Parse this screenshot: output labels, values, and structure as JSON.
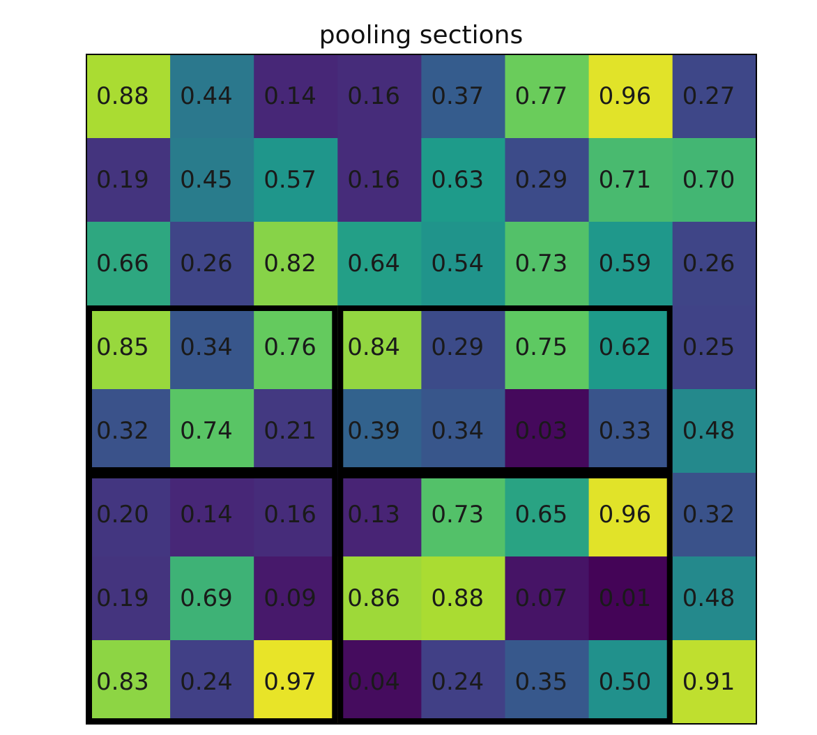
{
  "chart_data": {
    "type": "heatmap",
    "title": "pooling sections",
    "xlabel": "",
    "ylabel": "",
    "colormap": "viridis",
    "value_range": [
      0,
      1
    ],
    "rows": 8,
    "cols": 8,
    "values": [
      [
        0.88,
        0.44,
        0.14,
        0.16,
        0.37,
        0.77,
        0.96,
        0.27
      ],
      [
        0.19,
        0.45,
        0.57,
        0.16,
        0.63,
        0.29,
        0.71,
        0.7
      ],
      [
        0.66,
        0.26,
        0.82,
        0.64,
        0.54,
        0.73,
        0.59,
        0.26
      ],
      [
        0.85,
        0.34,
        0.76,
        0.84,
        0.29,
        0.75,
        0.62,
        0.25
      ],
      [
        0.32,
        0.74,
        0.21,
        0.39,
        0.34,
        0.03,
        0.33,
        0.48
      ],
      [
        0.2,
        0.14,
        0.16,
        0.13,
        0.73,
        0.65,
        0.96,
        0.32
      ],
      [
        0.19,
        0.69,
        0.09,
        0.86,
        0.88,
        0.07,
        0.01,
        0.48
      ],
      [
        0.83,
        0.24,
        0.97,
        0.04,
        0.24,
        0.35,
        0.5,
        0.91
      ]
    ],
    "labels": [
      [
        "0.88",
        "0.44",
        "0.14",
        "0.16",
        "0.37",
        "0.77",
        "0.96",
        "0.27"
      ],
      [
        "0.19",
        "0.45",
        "0.57",
        "0.16",
        "0.63",
        "0.29",
        "0.71",
        "0.70"
      ],
      [
        "0.66",
        "0.26",
        "0.82",
        "0.64",
        "0.54",
        "0.73",
        "0.59",
        "0.26"
      ],
      [
        "0.85",
        "0.34",
        "0.76",
        "0.84",
        "0.29",
        "0.75",
        "0.62",
        "0.25"
      ],
      [
        "0.32",
        "0.74",
        "0.21",
        "0.39",
        "0.34",
        "0.03",
        "0.33",
        "0.48"
      ],
      [
        "0.20",
        "0.14",
        "0.16",
        "0.13",
        "0.73",
        "0.65",
        "0.96",
        "0.32"
      ],
      [
        "0.19",
        "0.69",
        "0.09",
        "0.86",
        "0.88",
        "0.07",
        "0.01",
        "0.48"
      ],
      [
        "0.83",
        "0.24",
        "0.97",
        "0.04",
        "0.24",
        "0.35",
        "0.50",
        "0.91"
      ]
    ],
    "pooling_sections": [
      {
        "row_start": 3,
        "col_start": 0,
        "rows": 2,
        "cols": 3
      },
      {
        "row_start": 3,
        "col_start": 3,
        "rows": 2,
        "cols": 4
      },
      {
        "row_start": 5,
        "col_start": 0,
        "rows": 3,
        "cols": 3
      },
      {
        "row_start": 5,
        "col_start": 3,
        "rows": 3,
        "cols": 4
      }
    ],
    "section_outline_color": "#000000",
    "frame_color": "#000000"
  }
}
